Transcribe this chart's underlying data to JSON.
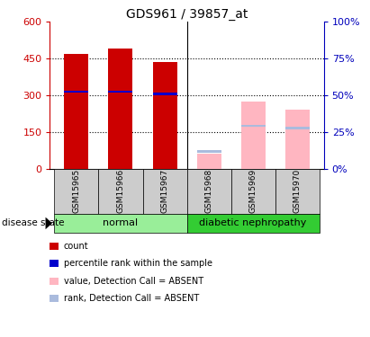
{
  "title": "GDS961 / 39857_at",
  "samples": [
    "GSM15965",
    "GSM15966",
    "GSM15967",
    "GSM15968",
    "GSM15969",
    "GSM15970"
  ],
  "counts": [
    470,
    490,
    435,
    null,
    null,
    null
  ],
  "ranks": [
    315,
    315,
    305,
    null,
    null,
    null
  ],
  "absent_values": [
    null,
    null,
    null,
    60,
    275,
    240
  ],
  "absent_ranks": [
    null,
    null,
    null,
    70,
    175,
    165
  ],
  "left_ylim": [
    0,
    600
  ],
  "left_yticks": [
    0,
    150,
    300,
    450,
    600
  ],
  "right_ylim": [
    0,
    100
  ],
  "right_yticks": [
    0,
    25,
    50,
    75,
    100
  ],
  "right_yticklabels": [
    "0%",
    "25%",
    "50%",
    "75%",
    "100%"
  ],
  "bar_width": 0.55,
  "count_color": "#CC0000",
  "rank_color": "#0000CC",
  "absent_value_color": "#FFB6C1",
  "absent_rank_color": "#AABBDD",
  "normal_group_color": "#99EE99",
  "dn_group_color": "#33CC33",
  "sample_bg_color": "#CCCCCC",
  "left_tick_color": "#CC0000",
  "right_tick_color": "#0000BB",
  "normal_group_name": "normal",
  "dn_group_name": "diabetic nephropathy",
  "disease_state_label": "disease state",
  "legend_items": [
    {
      "color": "#CC0000",
      "label": "count"
    },
    {
      "color": "#0000CC",
      "label": "percentile rank within the sample"
    },
    {
      "color": "#FFB6C1",
      "label": "value, Detection Call = ABSENT"
    },
    {
      "color": "#AABBDD",
      "label": "rank, Detection Call = ABSENT"
    }
  ]
}
